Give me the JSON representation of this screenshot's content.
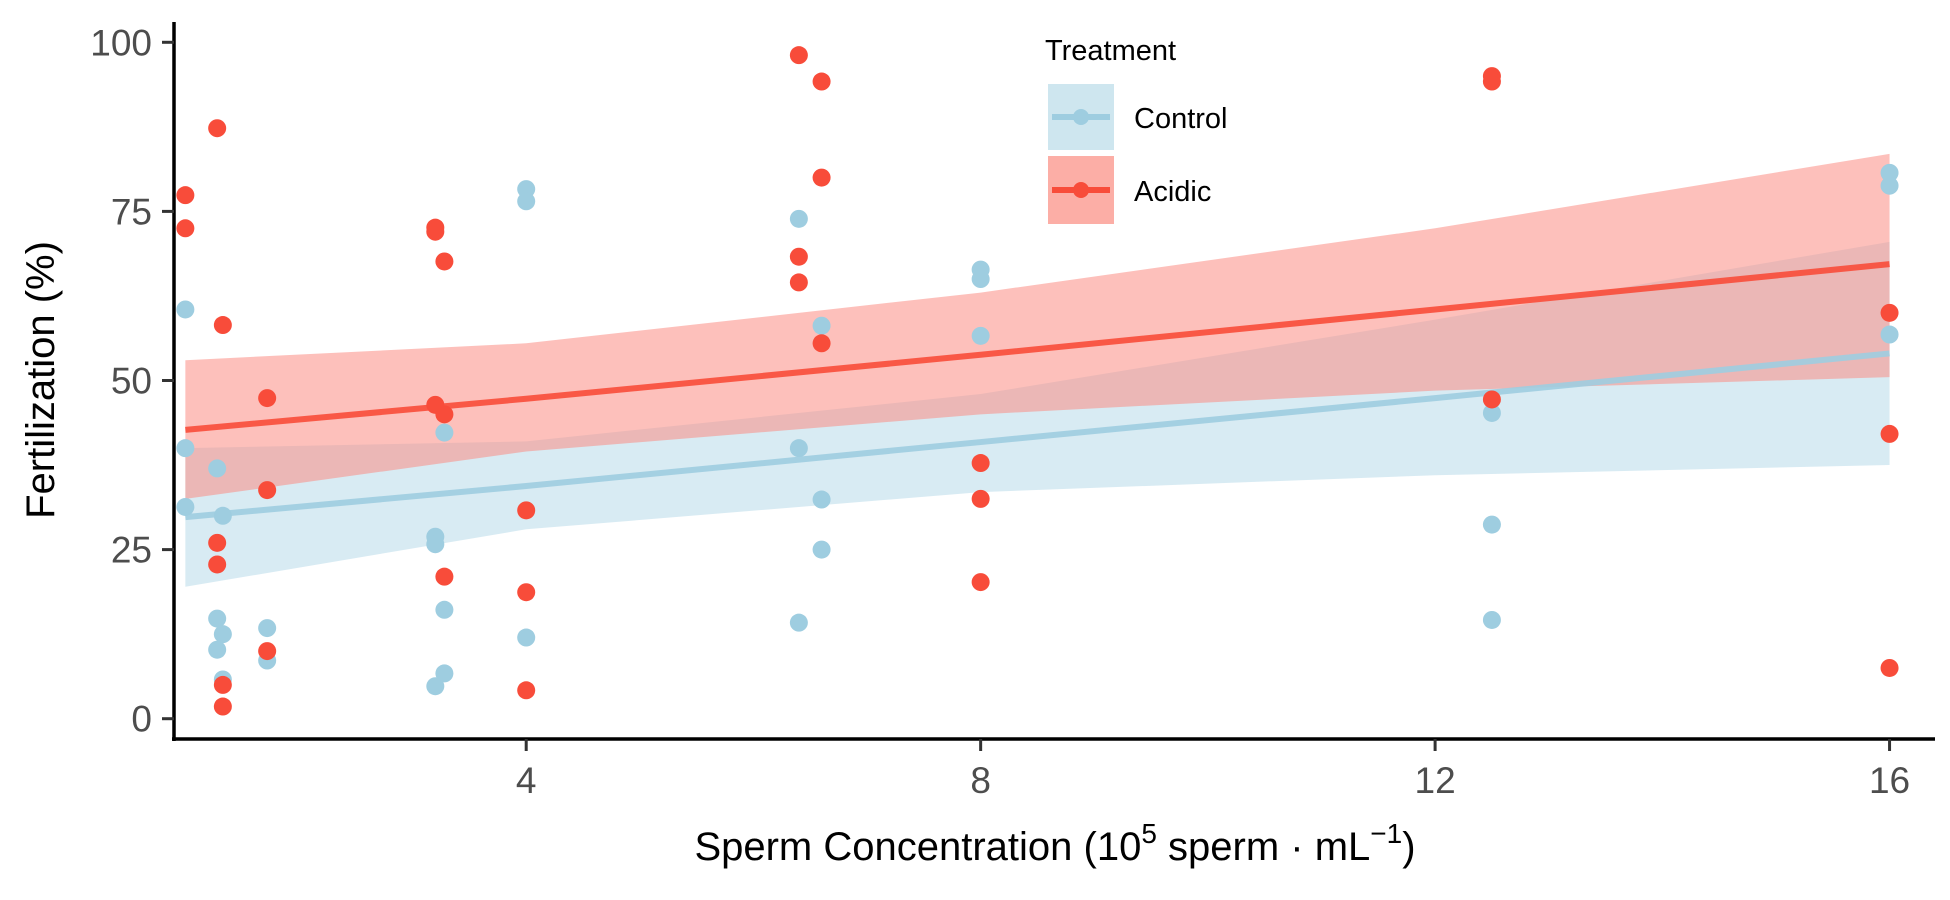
{
  "chart_data": {
    "type": "scatter",
    "xlabel": {
      "main": "Sperm Concentration (10",
      "exp1": "5",
      "mid": " sperm · mL",
      "exp2": "−1",
      "end": ")"
    },
    "ylabel": "Fertilization (%)",
    "xlim": [
      0.9,
      16.4
    ],
    "ylim": [
      -3,
      103
    ],
    "x_ticks": [
      4,
      8,
      12,
      16
    ],
    "x_tick_labels": [
      "4",
      "8",
      "12",
      "16"
    ],
    "y_ticks": [
      0,
      25,
      50,
      75,
      100
    ],
    "y_tick_labels": [
      "0",
      "25",
      "50",
      "75",
      "100"
    ],
    "grid": false,
    "legend": {
      "title": "Treatment",
      "placement": "top-center",
      "entries": [
        "Control",
        "Acidic"
      ]
    },
    "series": [
      {
        "name": "Control",
        "color": "#9ecde0",
        "band_color": "#9ecde0",
        "fit": {
          "x": [
            1.0,
            4.0,
            8.0,
            12.0,
            16.0
          ],
          "y": [
            29.8,
            34.4,
            40.9,
            47.4,
            54.0
          ],
          "lower": [
            19.5,
            28.0,
            33.5,
            36.0,
            37.5
          ],
          "upper": [
            40.0,
            41.0,
            48.0,
            59.0,
            70.5
          ]
        },
        "points": [
          {
            "x": 1.0,
            "y": 60.5
          },
          {
            "x": 1.0,
            "y": 40.0
          },
          {
            "x": 1.0,
            "y": 31.3
          },
          {
            "x": 1.28,
            "y": 37.0
          },
          {
            "x": 1.28,
            "y": 14.8
          },
          {
            "x": 1.28,
            "y": 10.2
          },
          {
            "x": 1.33,
            "y": 30.0
          },
          {
            "x": 1.33,
            "y": 12.5
          },
          {
            "x": 1.33,
            "y": 5.8
          },
          {
            "x": 1.72,
            "y": 13.4
          },
          {
            "x": 1.72,
            "y": 8.6
          },
          {
            "x": 3.2,
            "y": 26.9
          },
          {
            "x": 3.2,
            "y": 25.8
          },
          {
            "x": 3.2,
            "y": 4.8
          },
          {
            "x": 3.28,
            "y": 42.3
          },
          {
            "x": 3.28,
            "y": 16.1
          },
          {
            "x": 3.28,
            "y": 6.7
          },
          {
            "x": 4.0,
            "y": 78.3
          },
          {
            "x": 4.0,
            "y": 76.5
          },
          {
            "x": 4.0,
            "y": 12.0
          },
          {
            "x": 6.4,
            "y": 73.9
          },
          {
            "x": 6.4,
            "y": 40.0
          },
          {
            "x": 6.4,
            "y": 14.2
          },
          {
            "x": 6.6,
            "y": 58.1
          },
          {
            "x": 6.6,
            "y": 32.4
          },
          {
            "x": 6.6,
            "y": 25.0
          },
          {
            "x": 8.0,
            "y": 66.4
          },
          {
            "x": 8.0,
            "y": 65.0
          },
          {
            "x": 8.0,
            "y": 56.6
          },
          {
            "x": 12.5,
            "y": 45.2
          },
          {
            "x": 12.5,
            "y": 28.7
          },
          {
            "x": 12.5,
            "y": 14.6
          },
          {
            "x": 16.0,
            "y": 80.7
          },
          {
            "x": 16.0,
            "y": 78.8
          },
          {
            "x": 16.0,
            "y": 56.8
          }
        ]
      },
      {
        "name": "Acidic",
        "color": "#f84c3a",
        "band_color": "#fb8d84",
        "fit": {
          "x": [
            1.0,
            4.0,
            8.0,
            12.0,
            16.0
          ],
          "y": [
            42.7,
            47.3,
            53.8,
            60.5,
            67.2
          ],
          "lower": [
            32.5,
            39.5,
            45.0,
            48.5,
            50.5
          ],
          "upper": [
            53.0,
            55.5,
            63.0,
            72.5,
            83.5
          ]
        },
        "points": [
          {
            "x": 1.0,
            "y": 77.4
          },
          {
            "x": 1.0,
            "y": 72.5
          },
          {
            "x": 1.28,
            "y": 87.3
          },
          {
            "x": 1.28,
            "y": 26.0
          },
          {
            "x": 1.28,
            "y": 22.8
          },
          {
            "x": 1.33,
            "y": 58.2
          },
          {
            "x": 1.33,
            "y": 5.0
          },
          {
            "x": 1.33,
            "y": 1.8
          },
          {
            "x": 1.72,
            "y": 47.4
          },
          {
            "x": 1.72,
            "y": 33.8
          },
          {
            "x": 1.72,
            "y": 10.0
          },
          {
            "x": 3.2,
            "y": 72.6
          },
          {
            "x": 3.2,
            "y": 72.0
          },
          {
            "x": 3.2,
            "y": 46.4
          },
          {
            "x": 3.28,
            "y": 67.6
          },
          {
            "x": 3.28,
            "y": 45.0
          },
          {
            "x": 3.28,
            "y": 21.0
          },
          {
            "x": 4.0,
            "y": 30.8
          },
          {
            "x": 4.0,
            "y": 18.7
          },
          {
            "x": 4.0,
            "y": 4.2
          },
          {
            "x": 6.4,
            "y": 98.1
          },
          {
            "x": 6.4,
            "y": 68.3
          },
          {
            "x": 6.4,
            "y": 64.5
          },
          {
            "x": 6.6,
            "y": 94.2
          },
          {
            "x": 6.6,
            "y": 80.0
          },
          {
            "x": 6.6,
            "y": 55.5
          },
          {
            "x": 8.0,
            "y": 37.8
          },
          {
            "x": 8.0,
            "y": 32.5
          },
          {
            "x": 8.0,
            "y": 20.2
          },
          {
            "x": 12.5,
            "y": 95.0
          },
          {
            "x": 12.5,
            "y": 94.2
          },
          {
            "x": 12.5,
            "y": 47.2
          },
          {
            "x": 16.0,
            "y": 60.0
          },
          {
            "x": 16.0,
            "y": 42.1
          },
          {
            "x": 16.0,
            "y": 7.5
          }
        ]
      }
    ]
  }
}
